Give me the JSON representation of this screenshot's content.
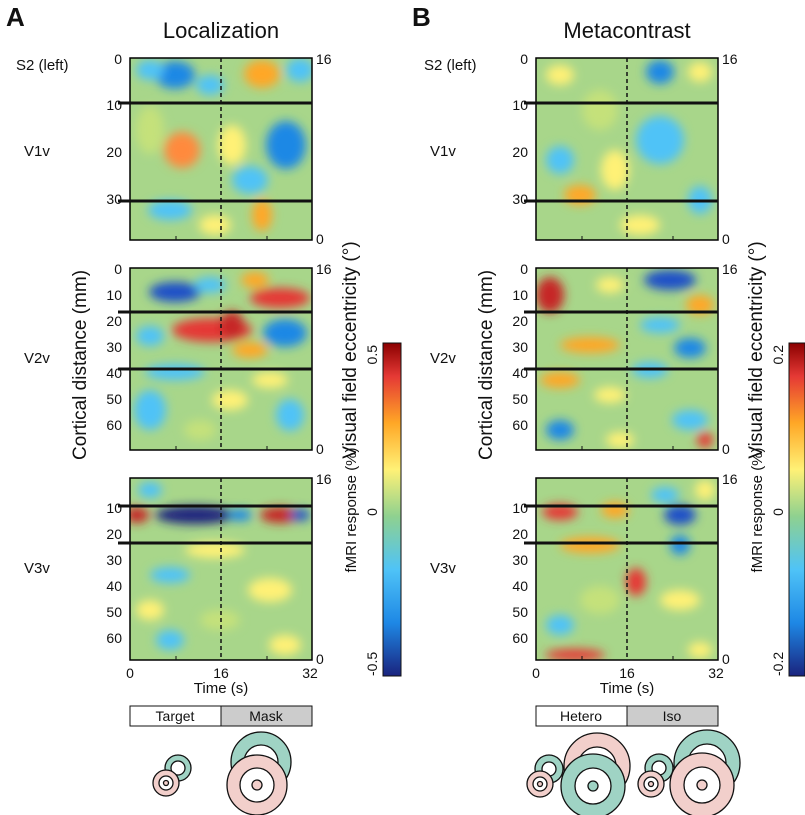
{
  "panels": [
    {
      "letter": "A",
      "title": "Localization",
      "hemisphere_label": "S2 (left)",
      "conditions": [
        "Target",
        "Mask"
      ],
      "colorbar": {
        "label": "fMRI response (%)",
        "max": "0.5",
        "mid": "0",
        "min": "-0.5"
      }
    },
    {
      "letter": "B",
      "title": "Metacontrast",
      "hemisphere_label": "S2 (left)",
      "conditions": [
        "Hetero",
        "Iso"
      ],
      "colorbar": {
        "label": "fMRI response (%)",
        "max": "0.2",
        "mid": "0",
        "min": "-0.2"
      }
    }
  ],
  "axes": {
    "y_label": "Cortical distance (mm)",
    "y2_label": "Visual field eccentricity (°)",
    "x_label": "Time (s)",
    "x_ticks": [
      "0",
      "16",
      "32"
    ],
    "ecc_ticks": [
      "16",
      "0"
    ]
  },
  "areas": [
    {
      "name": "V1v",
      "ticks": [
        "0",
        "10",
        "20",
        "30"
      ]
    },
    {
      "name": "V2v",
      "ticks": [
        "0",
        "10",
        "20",
        "30",
        "40",
        "50",
        "60"
      ]
    },
    {
      "name": "V3v",
      "ticks": [
        "10",
        "20",
        "30",
        "40",
        "50",
        "60"
      ]
    }
  ],
  "colors": {
    "ring_green": "#9fd3c4",
    "ring_pink": "#f2cfcb",
    "condition_box_gray": "#cccccc",
    "colormap": [
      "#1a237e",
      "#1e88e5",
      "#4fc3f7",
      "#8fd18f",
      "#fff176",
      "#ffa726",
      "#e53935",
      "#8b0000"
    ]
  }
}
